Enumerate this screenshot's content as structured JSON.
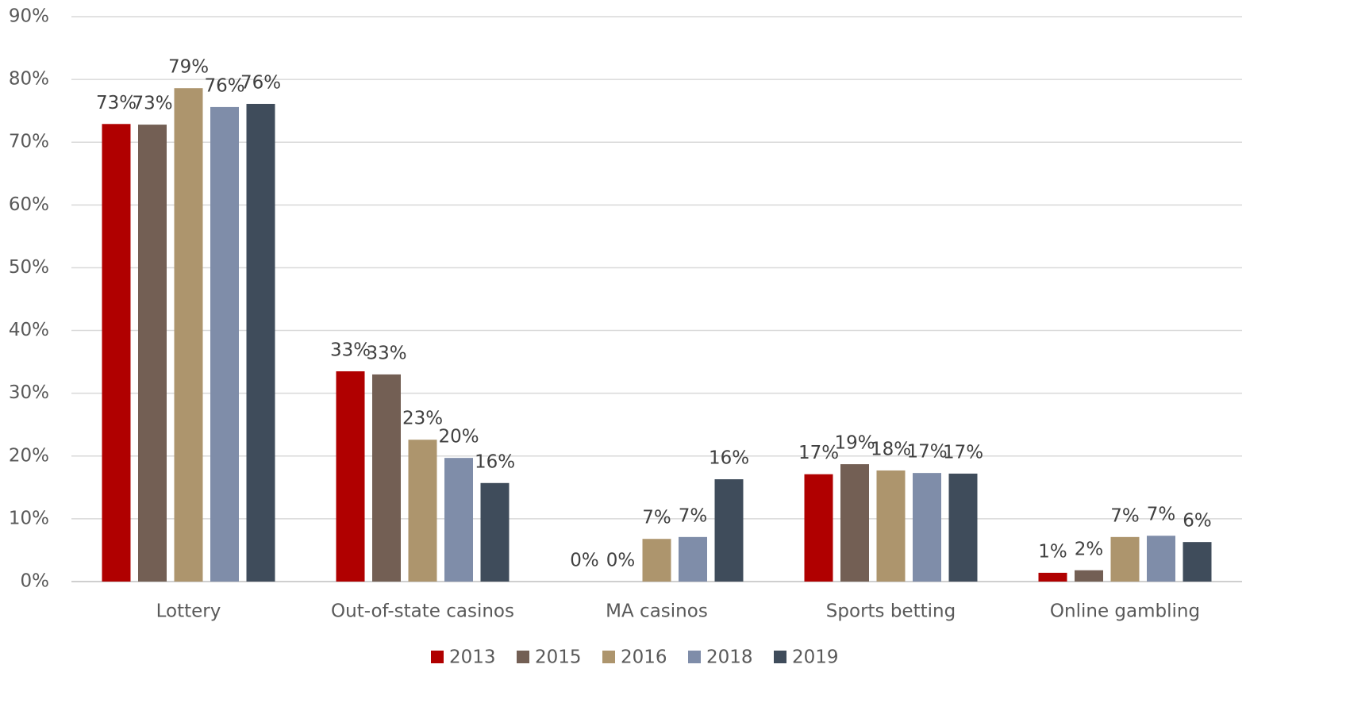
{
  "chart_data": {
    "type": "bar",
    "categories": [
      "Lottery",
      "Out-of-state casinos",
      "MA casinos",
      "Sports betting",
      "Online gambling"
    ],
    "series": [
      {
        "name": "2013",
        "color": "#b00000",
        "values": [
          72.9,
          33.5,
          0,
          17.1,
          1.4
        ],
        "value_labels": [
          "73%",
          "33%",
          "0%",
          "17%",
          "1%"
        ]
      },
      {
        "name": "2015",
        "color": "#735f54",
        "values": [
          72.8,
          33.0,
          0,
          18.7,
          1.8
        ],
        "value_labels": [
          "73%",
          "33%",
          "0%",
          "19%",
          "2%"
        ]
      },
      {
        "name": "2016",
        "color": "#ad956d",
        "values": [
          78.6,
          22.6,
          6.8,
          17.7,
          7.1
        ],
        "value_labels": [
          "79%",
          "23%",
          "7%",
          "18%",
          "7%"
        ]
      },
      {
        "name": "2018",
        "color": "#7f8da9",
        "values": [
          75.6,
          19.7,
          7.1,
          17.3,
          7.3
        ],
        "value_labels": [
          "76%",
          "20%",
          "7%",
          "17%",
          "7%"
        ]
      },
      {
        "name": "2019",
        "color": "#3f4c5b",
        "values": [
          76.1,
          15.7,
          16.3,
          17.2,
          6.3
        ],
        "value_labels": [
          "76%",
          "16%",
          "16%",
          "17%",
          "6%"
        ]
      }
    ],
    "ylim": [
      0,
      90
    ],
    "yticks": [
      {
        "value": 0,
        "label": "0%"
      },
      {
        "value": 10,
        "label": "10%"
      },
      {
        "value": 20,
        "label": "20%"
      },
      {
        "value": 30,
        "label": "30%"
      },
      {
        "value": 40,
        "label": "40%"
      },
      {
        "value": 50,
        "label": "50%"
      },
      {
        "value": 60,
        "label": "60%"
      },
      {
        "value": 70,
        "label": "70%"
      },
      {
        "value": 80,
        "label": "80%"
      },
      {
        "value": 90,
        "label": "90%"
      }
    ],
    "grid": true,
    "legend": "bottom"
  }
}
